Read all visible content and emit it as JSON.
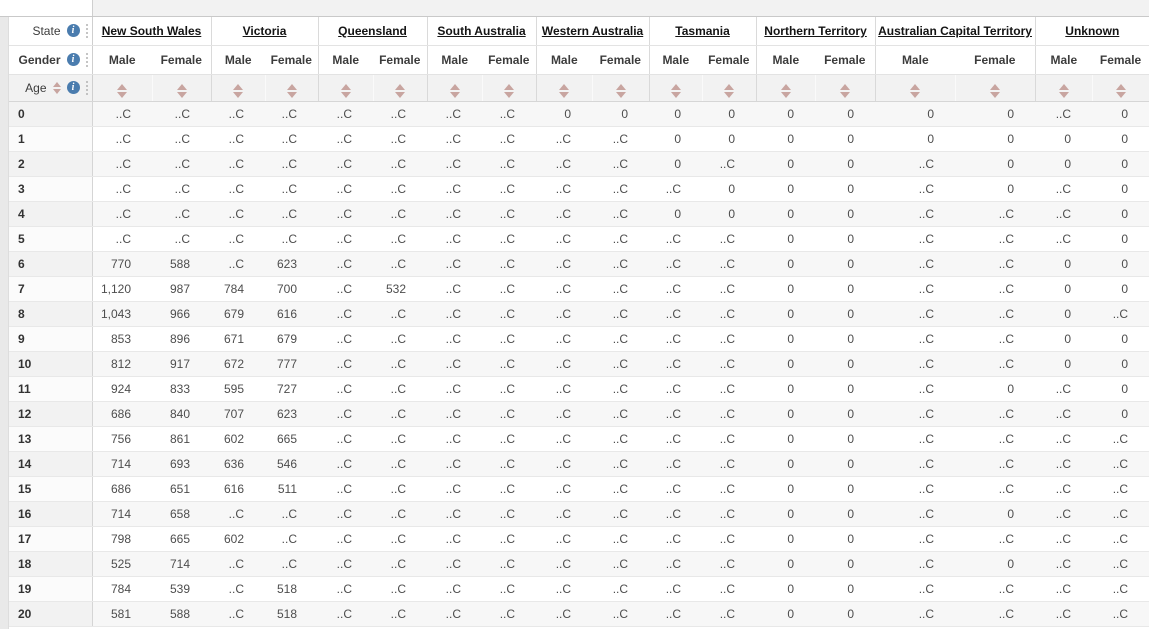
{
  "icons": {
    "info": "i"
  },
  "dimensions": {
    "state": {
      "label": "State"
    },
    "gender": {
      "label": "Gender"
    },
    "age": {
      "label": "Age"
    }
  },
  "columns": {
    "state_groups": [
      "New South Wales",
      "Victoria",
      "Queensland",
      "South Australia",
      "Western Australia",
      "Tasmania",
      "Northern Territory",
      "Australian Capital Territory",
      "Unknown"
    ],
    "gender_sub_columns": [
      "Male",
      "Female"
    ]
  },
  "confidential_marker": "..C",
  "rows": [
    {
      "age": "0",
      "values": [
        "..C",
        "..C",
        "..C",
        "..C",
        "..C",
        "..C",
        "..C",
        "..C",
        "0",
        "0",
        "0",
        "0",
        "0",
        "0",
        "0",
        "0",
        "..C",
        "0"
      ]
    },
    {
      "age": "1",
      "values": [
        "..C",
        "..C",
        "..C",
        "..C",
        "..C",
        "..C",
        "..C",
        "..C",
        "..C",
        "..C",
        "0",
        "0",
        "0",
        "0",
        "0",
        "0",
        "0",
        "0"
      ]
    },
    {
      "age": "2",
      "values": [
        "..C",
        "..C",
        "..C",
        "..C",
        "..C",
        "..C",
        "..C",
        "..C",
        "..C",
        "..C",
        "0",
        "..C",
        "0",
        "0",
        "..C",
        "0",
        "0",
        "0"
      ]
    },
    {
      "age": "3",
      "values": [
        "..C",
        "..C",
        "..C",
        "..C",
        "..C",
        "..C",
        "..C",
        "..C",
        "..C",
        "..C",
        "..C",
        "0",
        "0",
        "0",
        "..C",
        "0",
        "..C",
        "0"
      ]
    },
    {
      "age": "4",
      "values": [
        "..C",
        "..C",
        "..C",
        "..C",
        "..C",
        "..C",
        "..C",
        "..C",
        "..C",
        "..C",
        "0",
        "0",
        "0",
        "0",
        "..C",
        "..C",
        "..C",
        "0"
      ]
    },
    {
      "age": "5",
      "values": [
        "..C",
        "..C",
        "..C",
        "..C",
        "..C",
        "..C",
        "..C",
        "..C",
        "..C",
        "..C",
        "..C",
        "..C",
        "0",
        "0",
        "..C",
        "..C",
        "..C",
        "0"
      ]
    },
    {
      "age": "6",
      "values": [
        "770",
        "588",
        "..C",
        "623",
        "..C",
        "..C",
        "..C",
        "..C",
        "..C",
        "..C",
        "..C",
        "..C",
        "0",
        "0",
        "..C",
        "..C",
        "0",
        "0"
      ]
    },
    {
      "age": "7",
      "values": [
        "1,120",
        "987",
        "784",
        "700",
        "..C",
        "532",
        "..C",
        "..C",
        "..C",
        "..C",
        "..C",
        "..C",
        "0",
        "0",
        "..C",
        "..C",
        "0",
        "0"
      ]
    },
    {
      "age": "8",
      "values": [
        "1,043",
        "966",
        "679",
        "616",
        "..C",
        "..C",
        "..C",
        "..C",
        "..C",
        "..C",
        "..C",
        "..C",
        "0",
        "0",
        "..C",
        "..C",
        "0",
        "..C"
      ]
    },
    {
      "age": "9",
      "values": [
        "853",
        "896",
        "671",
        "679",
        "..C",
        "..C",
        "..C",
        "..C",
        "..C",
        "..C",
        "..C",
        "..C",
        "0",
        "0",
        "..C",
        "..C",
        "0",
        "0"
      ]
    },
    {
      "age": "10",
      "values": [
        "812",
        "917",
        "672",
        "777",
        "..C",
        "..C",
        "..C",
        "..C",
        "..C",
        "..C",
        "..C",
        "..C",
        "0",
        "0",
        "..C",
        "..C",
        "0",
        "0"
      ]
    },
    {
      "age": "11",
      "values": [
        "924",
        "833",
        "595",
        "727",
        "..C",
        "..C",
        "..C",
        "..C",
        "..C",
        "..C",
        "..C",
        "..C",
        "0",
        "0",
        "..C",
        "0",
        "..C",
        "0"
      ]
    },
    {
      "age": "12",
      "values": [
        "686",
        "840",
        "707",
        "623",
        "..C",
        "..C",
        "..C",
        "..C",
        "..C",
        "..C",
        "..C",
        "..C",
        "0",
        "0",
        "..C",
        "..C",
        "..C",
        "0"
      ]
    },
    {
      "age": "13",
      "values": [
        "756",
        "861",
        "602",
        "665",
        "..C",
        "..C",
        "..C",
        "..C",
        "..C",
        "..C",
        "..C",
        "..C",
        "0",
        "0",
        "..C",
        "..C",
        "..C",
        "..C"
      ]
    },
    {
      "age": "14",
      "values": [
        "714",
        "693",
        "636",
        "546",
        "..C",
        "..C",
        "..C",
        "..C",
        "..C",
        "..C",
        "..C",
        "..C",
        "0",
        "0",
        "..C",
        "..C",
        "..C",
        "..C"
      ]
    },
    {
      "age": "15",
      "values": [
        "686",
        "651",
        "616",
        "511",
        "..C",
        "..C",
        "..C",
        "..C",
        "..C",
        "..C",
        "..C",
        "..C",
        "0",
        "0",
        "..C",
        "..C",
        "..C",
        "..C"
      ]
    },
    {
      "age": "16",
      "values": [
        "714",
        "658",
        "..C",
        "..C",
        "..C",
        "..C",
        "..C",
        "..C",
        "..C",
        "..C",
        "..C",
        "..C",
        "0",
        "0",
        "..C",
        "0",
        "..C",
        "..C"
      ]
    },
    {
      "age": "17",
      "values": [
        "798",
        "665",
        "602",
        "..C",
        "..C",
        "..C",
        "..C",
        "..C",
        "..C",
        "..C",
        "..C",
        "..C",
        "0",
        "0",
        "..C",
        "..C",
        "..C",
        "..C"
      ]
    },
    {
      "age": "18",
      "values": [
        "525",
        "714",
        "..C",
        "..C",
        "..C",
        "..C",
        "..C",
        "..C",
        "..C",
        "..C",
        "..C",
        "..C",
        "0",
        "0",
        "..C",
        "0",
        "..C",
        "..C"
      ]
    },
    {
      "age": "19",
      "values": [
        "784",
        "539",
        "..C",
        "518",
        "..C",
        "..C",
        "..C",
        "..C",
        "..C",
        "..C",
        "..C",
        "..C",
        "0",
        "0",
        "..C",
        "..C",
        "..C",
        "..C"
      ]
    },
    {
      "age": "20",
      "values": [
        "581",
        "588",
        "..C",
        "518",
        "..C",
        "..C",
        "..C",
        "..C",
        "..C",
        "..C",
        "..C",
        "..C",
        "0",
        "0",
        "..C",
        "..C",
        "..C",
        "..C"
      ]
    }
  ],
  "colors": {
    "info_icon_blue": "#4a7cae",
    "sort_arrow_rose": "#c8a5a0",
    "row_band_gray": "#f7f7f7",
    "header_label_gray": "#f0f0f0",
    "top_strip_gray": "#f2f2f2"
  }
}
